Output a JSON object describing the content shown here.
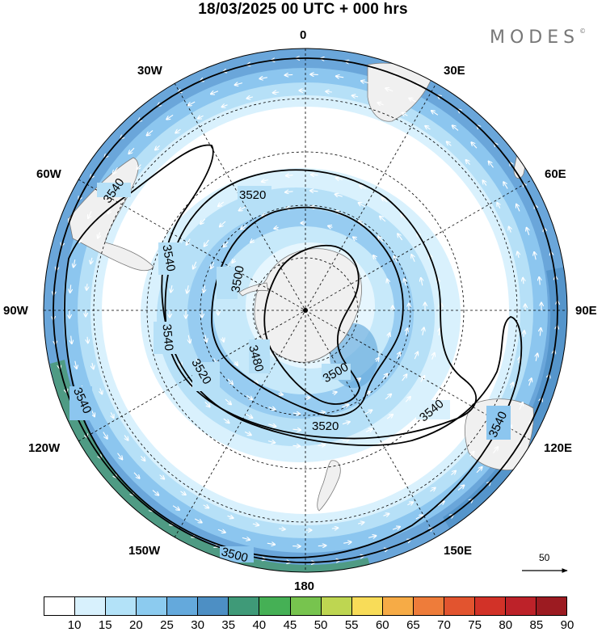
{
  "title": "18/03/2025  00 UTC  + 000 hrs",
  "brand": "MODES",
  "brand_mark": "©",
  "longitude_labels": {
    "top": "0",
    "bottom": "180",
    "left": "90W",
    "right": "90E",
    "upper_left_1": "30W",
    "upper_left_2": "60W",
    "upper_right_1": "30E",
    "upper_right_2": "60E",
    "lower_left_1": "120W",
    "lower_left_2": "150W",
    "lower_right_1": "120E",
    "lower_right_2": "150E"
  },
  "contour_labels": [
    "3540",
    "3520",
    "3500",
    "3480",
    "3500",
    "3520",
    "3540",
    "3540",
    "3540",
    "3540",
    "3520",
    "3540",
    "3500"
  ],
  "reference_vector": {
    "label": "50",
    "icon": "right-arrow"
  },
  "colorbar": {
    "ticks": [
      "10",
      "15",
      "20",
      "25",
      "30",
      "35",
      "40",
      "45",
      "50",
      "55",
      "60",
      "65",
      "70",
      "75",
      "80",
      "85",
      "90"
    ],
    "colors": [
      "#ffffff",
      "#d8f1fd",
      "#b3e2f8",
      "#8ccbef",
      "#64a9dc",
      "#4d8fc4",
      "#3f9a78",
      "#45b055",
      "#77c44e",
      "#bed651",
      "#f8dc58",
      "#f6ab46",
      "#ee7c3a",
      "#e2542f",
      "#d23228",
      "#bd2229",
      "#9c1b21"
    ]
  },
  "map": {
    "projection": "south polar stereographic",
    "fill_colors": {
      "outer_ring": "#5f9ed6",
      "ring2": "#86c2ee",
      "ring3": "#b6e0f7",
      "ring4": "#d9f1fd",
      "green_edge": "#4e9a80",
      "land": "#f0f0f0",
      "jet_core": "#c7e9fa",
      "jet_mid": "#a7d8f4"
    },
    "contour_color": "#000000"
  }
}
